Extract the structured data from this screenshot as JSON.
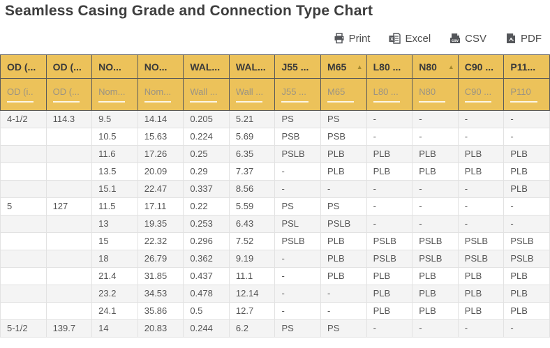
{
  "title": "Seamless Casing Grade and Connection Type Chart",
  "toolbar": {
    "print_label": "Print",
    "excel_label": "Excel",
    "csv_label": "CSV",
    "pdf_label": "PDF"
  },
  "colors": {
    "header_bg": "#ecc25a",
    "header_border": "#5a5a5a",
    "sort_arrow": "#a3872e",
    "row_stripe": "#f4f4f4",
    "body_text": "#555555",
    "title_text": "#3d3d3d"
  },
  "table": {
    "columns": [
      {
        "header": "OD (...",
        "filter": "OD (i...",
        "sort": ""
      },
      {
        "header": "OD (...",
        "filter": "OD (...",
        "sort": ""
      },
      {
        "header": "NO...",
        "filter": "Nom....",
        "sort": ""
      },
      {
        "header": "NO...",
        "filter": "Nom....",
        "sort": ""
      },
      {
        "header": "WAL...",
        "filter": "Wall ...",
        "sort": ""
      },
      {
        "header": "WAL...",
        "filter": "Wall ...",
        "sort": ""
      },
      {
        "header": "J55 ...",
        "filter": "J55 ...",
        "sort": ""
      },
      {
        "header": "M65",
        "filter": "M65",
        "sort": "asc"
      },
      {
        "header": "L80 ...",
        "filter": "L80 ...",
        "sort": ""
      },
      {
        "header": "N80",
        "filter": "N80",
        "sort": "asc"
      },
      {
        "header": "C90 ...",
        "filter": "C90 ...",
        "sort": ""
      },
      {
        "header": "P11...",
        "filter": "P110",
        "sort": ""
      }
    ],
    "rows": [
      [
        "4-1/2",
        "114.3",
        "9.5",
        "14.14",
        "0.205",
        "5.21",
        "PS",
        "PS",
        "-",
        "-",
        "-",
        "-"
      ],
      [
        "",
        "",
        "10.5",
        "15.63",
        "0.224",
        "5.69",
        "PSB",
        "PSB",
        "-",
        "-",
        "-",
        "-"
      ],
      [
        "",
        "",
        "11.6",
        "17.26",
        "0.25",
        "6.35",
        "PSLB",
        "PLB",
        "PLB",
        "PLB",
        "PLB",
        "PLB"
      ],
      [
        "",
        "",
        "13.5",
        "20.09",
        "0.29",
        "7.37",
        "-",
        "PLB",
        "PLB",
        "PLB",
        "PLB",
        "PLB"
      ],
      [
        "",
        "",
        "15.1",
        "22.47",
        "0.337",
        "8.56",
        "-",
        "-",
        "-",
        "-",
        "-",
        "PLB"
      ],
      [
        "5",
        "127",
        "11.5",
        "17.11",
        "0.22",
        "5.59",
        "PS",
        "PS",
        "-",
        "-",
        "-",
        "-"
      ],
      [
        "",
        "",
        "13",
        "19.35",
        "0.253",
        "6.43",
        "PSL",
        "PSLB",
        "-",
        "-",
        "-",
        "-"
      ],
      [
        "",
        "",
        "15",
        "22.32",
        "0.296",
        "7.52",
        "PSLB",
        "PLB",
        "PSLB",
        "PSLB",
        "PSLB",
        "PSLB"
      ],
      [
        "",
        "",
        "18",
        "26.79",
        "0.362",
        "9.19",
        "-",
        "PLB",
        "PSLB",
        "PSLB",
        "PSLB",
        "PSLB"
      ],
      [
        "",
        "",
        "21.4",
        "31.85",
        "0.437",
        "11.1",
        "-",
        "PLB",
        "PLB",
        "PLB",
        "PLB",
        "PLB"
      ],
      [
        "",
        "",
        "23.2",
        "34.53",
        "0.478",
        "12.14",
        "-",
        "-",
        "PLB",
        "PLB",
        "PLB",
        "PLB"
      ],
      [
        "",
        "",
        "24.1",
        "35.86",
        "0.5",
        "12.7",
        "-",
        "-",
        "PLB",
        "PLB",
        "PLB",
        "PLB"
      ],
      [
        "5-1/2",
        "139.7",
        "14",
        "20.83",
        "0.244",
        "6.2",
        "PS",
        "PS",
        "-",
        "-",
        "-",
        "-"
      ]
    ]
  }
}
